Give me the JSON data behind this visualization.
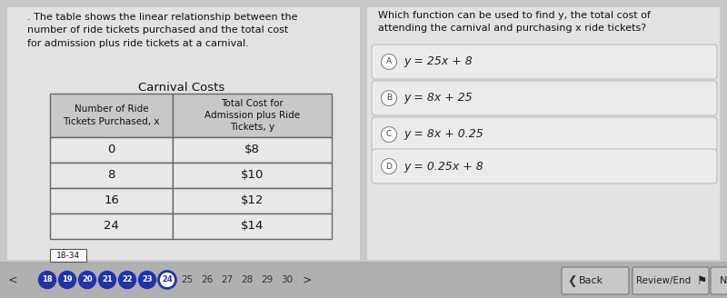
{
  "bg_color": "#c8c8c8",
  "left_panel_bg": "#e2e2e2",
  "right_panel_bg": "#e2e2e2",
  "left_intro_text": ". The table shows the linear relationship between the\nnumber of ride tickets purchased and the total cost\nfor admission plus ride tickets at a carnival.",
  "table_title": "Carnival Costs",
  "col1_header": "Number of Ride\nTickets Purchased, x",
  "col2_header": "Total Cost for\nAdmission plus Ride\nTickets, y",
  "table_data": [
    [
      "0",
      "$8"
    ],
    [
      "8",
      "$10"
    ],
    [
      "16",
      "$12"
    ],
    [
      "24",
      "$14"
    ]
  ],
  "right_question": "Which function can be used to find y, the total cost of\nattending the carnival and purchasing x ride tickets?",
  "options": [
    {
      "label": "A",
      "text": "y = 25x + 8"
    },
    {
      "label": "B",
      "text": "y = 8x + 25"
    },
    {
      "label": "C",
      "text": "y = 8x + 0.25"
    },
    {
      "label": "D",
      "text": "y = 0.25x + 8"
    }
  ],
  "time_label": "18-34",
  "nav_filled": [
    "18",
    "19",
    "20",
    "21",
    "22",
    "23"
  ],
  "nav_outlined": [
    "24"
  ],
  "nav_plain": [
    "25",
    "26",
    "27",
    "28",
    "29",
    "30"
  ],
  "table_border_color": "#666666",
  "table_header_bg": "#c8c8c8",
  "table_row_bg": "#e8e8e8",
  "option_box_bg": "#ebebeb",
  "option_box_border": "#bbbbbb",
  "nav_circle_color": "#2233aa",
  "bottom_bar_color": "#b0b0b0"
}
